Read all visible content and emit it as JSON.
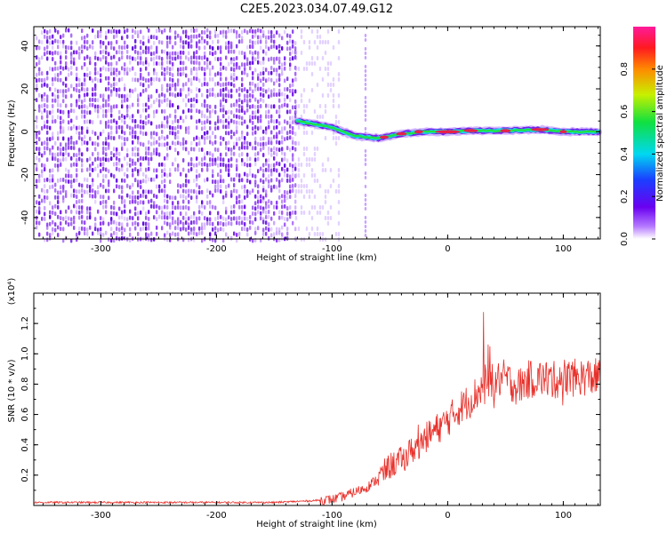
{
  "title": "C2E5.2023.034.07.49.G12",
  "colors": {
    "snr_line": "#e8302a",
    "scatter_purple": "#7a1ef0",
    "band_cyan": "#16d6e8",
    "band_green": "#20e040",
    "band_red": "#e8204a"
  },
  "chart_data": [
    {
      "type": "heatmap",
      "title": "",
      "xlabel": "Height of straight line (km)",
      "ylabel": "Frequency (Hz)",
      "xlim": [
        -358,
        132
      ],
      "ylim": [
        -50,
        49
      ],
      "x_ticks": [
        -300,
        -200,
        -100,
        0,
        100
      ],
      "y_ticks": [
        -40,
        -20,
        0,
        20,
        40
      ],
      "grid": false,
      "colorbar": {
        "label": "Normalized spectral amplitude",
        "range": [
          0.0,
          1.0
        ],
        "ticks": [
          "0.0",
          "0.2",
          "0.4",
          "0.6",
          "0.8"
        ],
        "colormap": "rainbow (white-purple-blue-cyan-green-yellow-red-magenta)"
      },
      "description_points": [
        {
          "x": -130,
          "y": 5
        },
        {
          "x": -100,
          "y": 2
        },
        {
          "x": -80,
          "y": -2
        },
        {
          "x": -60,
          "y": -3
        },
        {
          "x": -40,
          "y": -1
        },
        {
          "x": -20,
          "y": 0
        },
        {
          "x": 0,
          "y": 0
        },
        {
          "x": 20,
          "y": 0.5
        },
        {
          "x": 50,
          "y": 0.5
        },
        {
          "x": 80,
          "y": 1
        },
        {
          "x": 100,
          "y": 0
        },
        {
          "x": 130,
          "y": 0
        }
      ]
    },
    {
      "type": "line",
      "title": "",
      "xlabel": "Height of straight line (km)",
      "ylabel": "SNR (10 * v/v)",
      "yscale_label": "(x10⁴)",
      "xlim": [
        -358,
        132
      ],
      "ylim": [
        0,
        1.4
      ],
      "x_ticks": [
        -300,
        -200,
        -100,
        0,
        100
      ],
      "y_ticks": [
        0.2,
        0.4,
        0.6,
        0.8,
        1.0,
        1.2
      ],
      "grid": false,
      "series": [
        {
          "name": "",
          "x": [
            -358,
            -300,
            -250,
            -200,
            -150,
            -120,
            -100,
            -90,
            -80,
            -70,
            -60,
            -50,
            -40,
            -30,
            -20,
            -10,
            0,
            10,
            20,
            30,
            40,
            50,
            60,
            70,
            80,
            90,
            100,
            110,
            120,
            132
          ],
          "y": [
            0.02,
            0.02,
            0.02,
            0.02,
            0.02,
            0.03,
            0.04,
            0.06,
            0.09,
            0.12,
            0.18,
            0.26,
            0.3,
            0.37,
            0.44,
            0.5,
            0.56,
            0.64,
            0.7,
            0.78,
            0.82,
            0.84,
            0.78,
            0.83,
            0.84,
            0.82,
            0.85,
            0.84,
            0.85,
            0.84
          ]
        }
      ]
    }
  ]
}
